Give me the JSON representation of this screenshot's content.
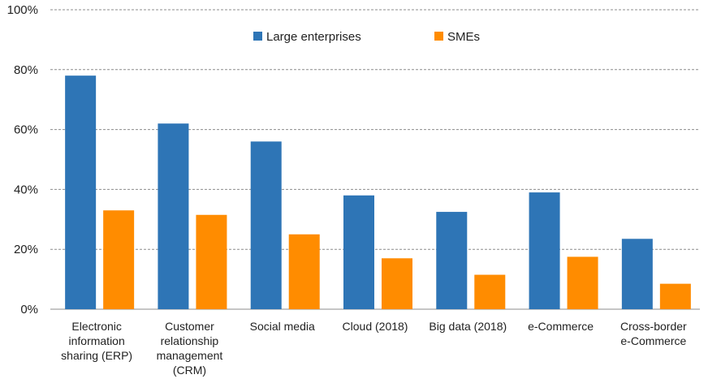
{
  "chart_data": {
    "type": "bar",
    "categories": [
      [
        "Electronic",
        "information",
        "sharing (ERP)"
      ],
      [
        "Customer",
        "relationship",
        "management",
        "(CRM)"
      ],
      [
        "Social media"
      ],
      [
        "Cloud (2018)"
      ],
      [
        "Big data (2018)"
      ],
      [
        "e-Commerce"
      ],
      [
        "Cross-border",
        "e-Commerce"
      ]
    ],
    "series": [
      {
        "name": "Large enterprises",
        "color": "#2e75b6",
        "values": [
          78,
          62,
          56,
          38,
          32.5,
          39,
          23.5
        ]
      },
      {
        "name": "SMEs",
        "color": "#ff8c00",
        "values": [
          33,
          31.5,
          25,
          17,
          11.5,
          17.5,
          8.5
        ]
      }
    ],
    "yticks": [
      "0%",
      "20%",
      "40%",
      "60%",
      "80%",
      "100%"
    ],
    "ylim": [
      0,
      100
    ],
    "grid": true,
    "legend": "top-center"
  }
}
